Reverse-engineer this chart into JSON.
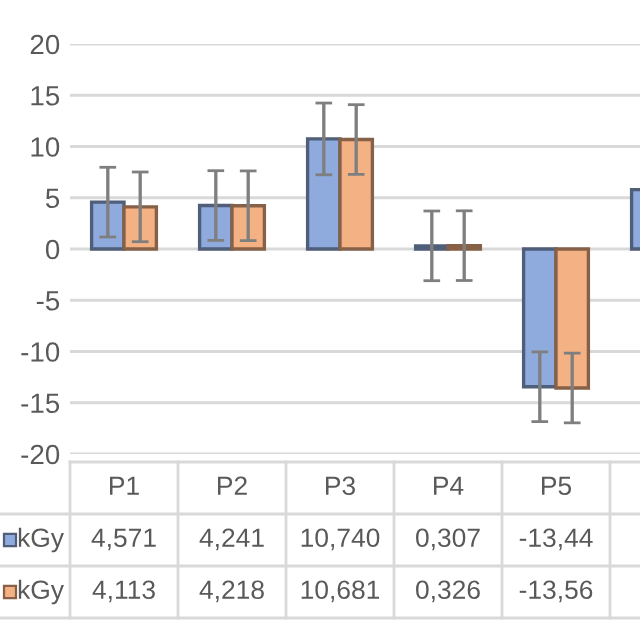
{
  "chart_data": {
    "type": "bar",
    "categories": [
      "P1",
      "P2",
      "P3",
      "P4",
      "P5",
      null
    ],
    "series": [
      {
        "name": "kGy",
        "color": "#8faadc",
        "values": [
          4.571,
          4.241,
          10.74,
          0.307,
          -13.44,
          5.8
        ],
        "errors": [
          3.4,
          3.4,
          3.5,
          3.4,
          3.4,
          null
        ],
        "value_labels": [
          "4,571",
          "4,241",
          "10,740",
          "0,307",
          "-13,44",
          null
        ]
      },
      {
        "name": "kGy",
        "color": "#f4b183",
        "values": [
          4.113,
          4.218,
          10.681,
          0.326,
          -13.56,
          null
        ],
        "errors": [
          3.4,
          3.4,
          3.4,
          3.4,
          3.4,
          null
        ],
        "value_labels": [
          "4,113",
          "4,218",
          "10,681",
          "0,326",
          "-13,56",
          null
        ]
      }
    ],
    "ylim": [
      -20,
      20
    ],
    "yticks": [
      -20,
      -15,
      -10,
      -5,
      0,
      5,
      10,
      15,
      20
    ],
    "grid": "y",
    "legend": "bottom left"
  }
}
